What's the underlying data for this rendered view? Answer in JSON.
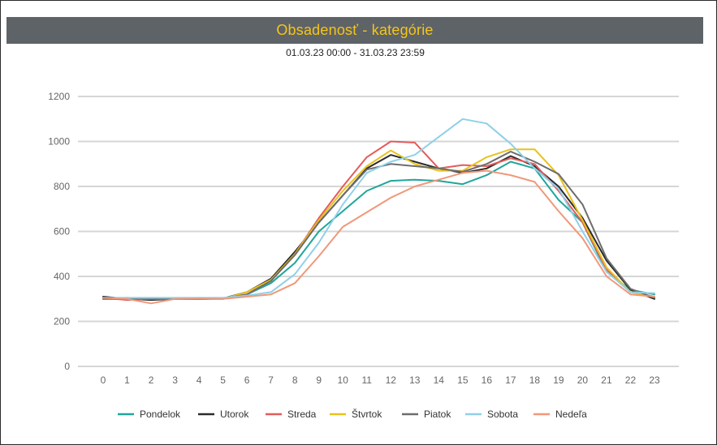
{
  "header": {
    "title": "Obsadenosť - kategórie"
  },
  "filter": {
    "date_range": "01.03.23 00:00 - 31.03.23 23:59"
  },
  "chart_data": {
    "type": "line",
    "title": "Obsadenosť - kategórie",
    "subtitle": "01.03.23 00:00 - 31.03.23 23:59",
    "xlabel": "",
    "ylabel": "",
    "ylim": [
      0,
      1200
    ],
    "yticks": [
      0,
      200,
      400,
      600,
      800,
      1000,
      1200
    ],
    "grid": true,
    "legend_position": "bottom",
    "x": [
      0,
      1,
      2,
      3,
      4,
      5,
      6,
      7,
      8,
      9,
      10,
      11,
      12,
      13,
      14,
      15,
      16,
      17,
      18,
      19,
      20,
      21,
      22,
      23
    ],
    "series": [
      {
        "name": "Pondelok",
        "color": "#1fa69a",
        "values": [
          300,
          305,
          300,
          300,
          300,
          300,
          320,
          370,
          460,
          600,
          690,
          780,
          825,
          830,
          825,
          810,
          850,
          910,
          880,
          740,
          640,
          420,
          340,
          320
        ]
      },
      {
        "name": "Utorok",
        "color": "#2b2b2b",
        "values": [
          310,
          300,
          295,
          300,
          300,
          302,
          330,
          390,
          510,
          640,
          760,
          880,
          940,
          910,
          880,
          860,
          880,
          935,
          890,
          800,
          660,
          470,
          340,
          300
        ]
      },
      {
        "name": "Streda",
        "color": "#e35b5b",
        "values": [
          305,
          295,
          300,
          300,
          300,
          300,
          330,
          380,
          500,
          660,
          800,
          930,
          1000,
          995,
          880,
          895,
          890,
          925,
          900,
          780,
          640,
          430,
          330,
          310
        ]
      },
      {
        "name": "Štvrtok",
        "color": "#e8c21c",
        "values": [
          300,
          300,
          300,
          300,
          300,
          300,
          330,
          385,
          500,
          650,
          780,
          890,
          960,
          900,
          870,
          870,
          930,
          965,
          965,
          850,
          650,
          440,
          330,
          310
        ]
      },
      {
        "name": "Piatok",
        "color": "#6d6d6d",
        "values": [
          300,
          300,
          300,
          300,
          300,
          302,
          320,
          380,
          495,
          640,
          760,
          875,
          900,
          890,
          880,
          865,
          900,
          955,
          910,
          855,
          720,
          480,
          345,
          305
        ]
      },
      {
        "name": "Sobota",
        "color": "#8fd0e8",
        "values": [
          305,
          305,
          305,
          305,
          305,
          305,
          315,
          330,
          410,
          550,
          720,
          860,
          910,
          940,
          1020,
          1100,
          1080,
          990,
          880,
          790,
          600,
          420,
          330,
          325
        ]
      },
      {
        "name": "Nedeľa",
        "color": "#f0987a",
        "values": [
          305,
          300,
          280,
          300,
          302,
          300,
          310,
          320,
          370,
          490,
          620,
          685,
          750,
          800,
          830,
          860,
          870,
          850,
          820,
          690,
          570,
          400,
          320,
          310
        ]
      }
    ]
  }
}
